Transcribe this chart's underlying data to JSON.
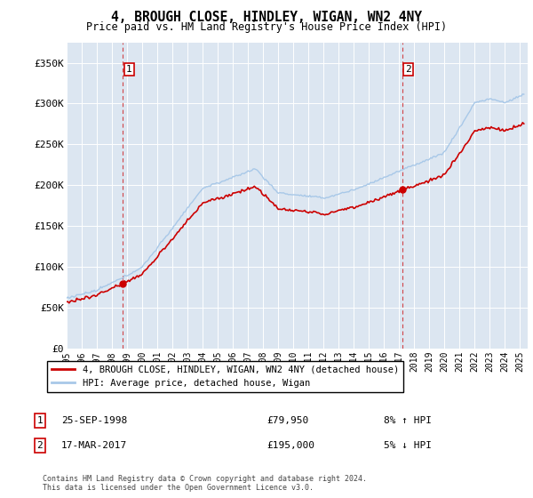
{
  "title": "4, BROUGH CLOSE, HINDLEY, WIGAN, WN2 4NY",
  "subtitle": "Price paid vs. HM Land Registry's House Price Index (HPI)",
  "ylabel_ticks": [
    "£0",
    "£50K",
    "£100K",
    "£150K",
    "£200K",
    "£250K",
    "£300K",
    "£350K"
  ],
  "ytick_values": [
    0,
    50000,
    100000,
    150000,
    200000,
    250000,
    300000,
    350000
  ],
  "ylim": [
    0,
    375000
  ],
  "xlim_start": 1995.0,
  "xlim_end": 2025.5,
  "background_color": "#dce6f1",
  "grid_color": "#ffffff",
  "hpi_line_color": "#a8c8e8",
  "price_line_color": "#cc0000",
  "transaction1": {
    "date": "25-SEP-1998",
    "x": 1998.73,
    "price": 79950,
    "label": "1",
    "pct": "8% ↑ HPI"
  },
  "transaction2": {
    "date": "17-MAR-2017",
    "x": 2017.21,
    "price": 195000,
    "label": "2",
    "pct": "5% ↓ HPI"
  },
  "legend_line1": "4, BROUGH CLOSE, HINDLEY, WIGAN, WN2 4NY (detached house)",
  "legend_line2": "HPI: Average price, detached house, Wigan",
  "footer": "Contains HM Land Registry data © Crown copyright and database right 2024.\nThis data is licensed under the Open Government Licence v3.0.",
  "xtick_years": [
    1995,
    1996,
    1997,
    1998,
    1999,
    2000,
    2001,
    2002,
    2003,
    2004,
    2005,
    2006,
    2007,
    2008,
    2009,
    2010,
    2011,
    2012,
    2013,
    2014,
    2015,
    2016,
    2017,
    2018,
    2019,
    2020,
    2021,
    2022,
    2023,
    2024,
    2025
  ]
}
